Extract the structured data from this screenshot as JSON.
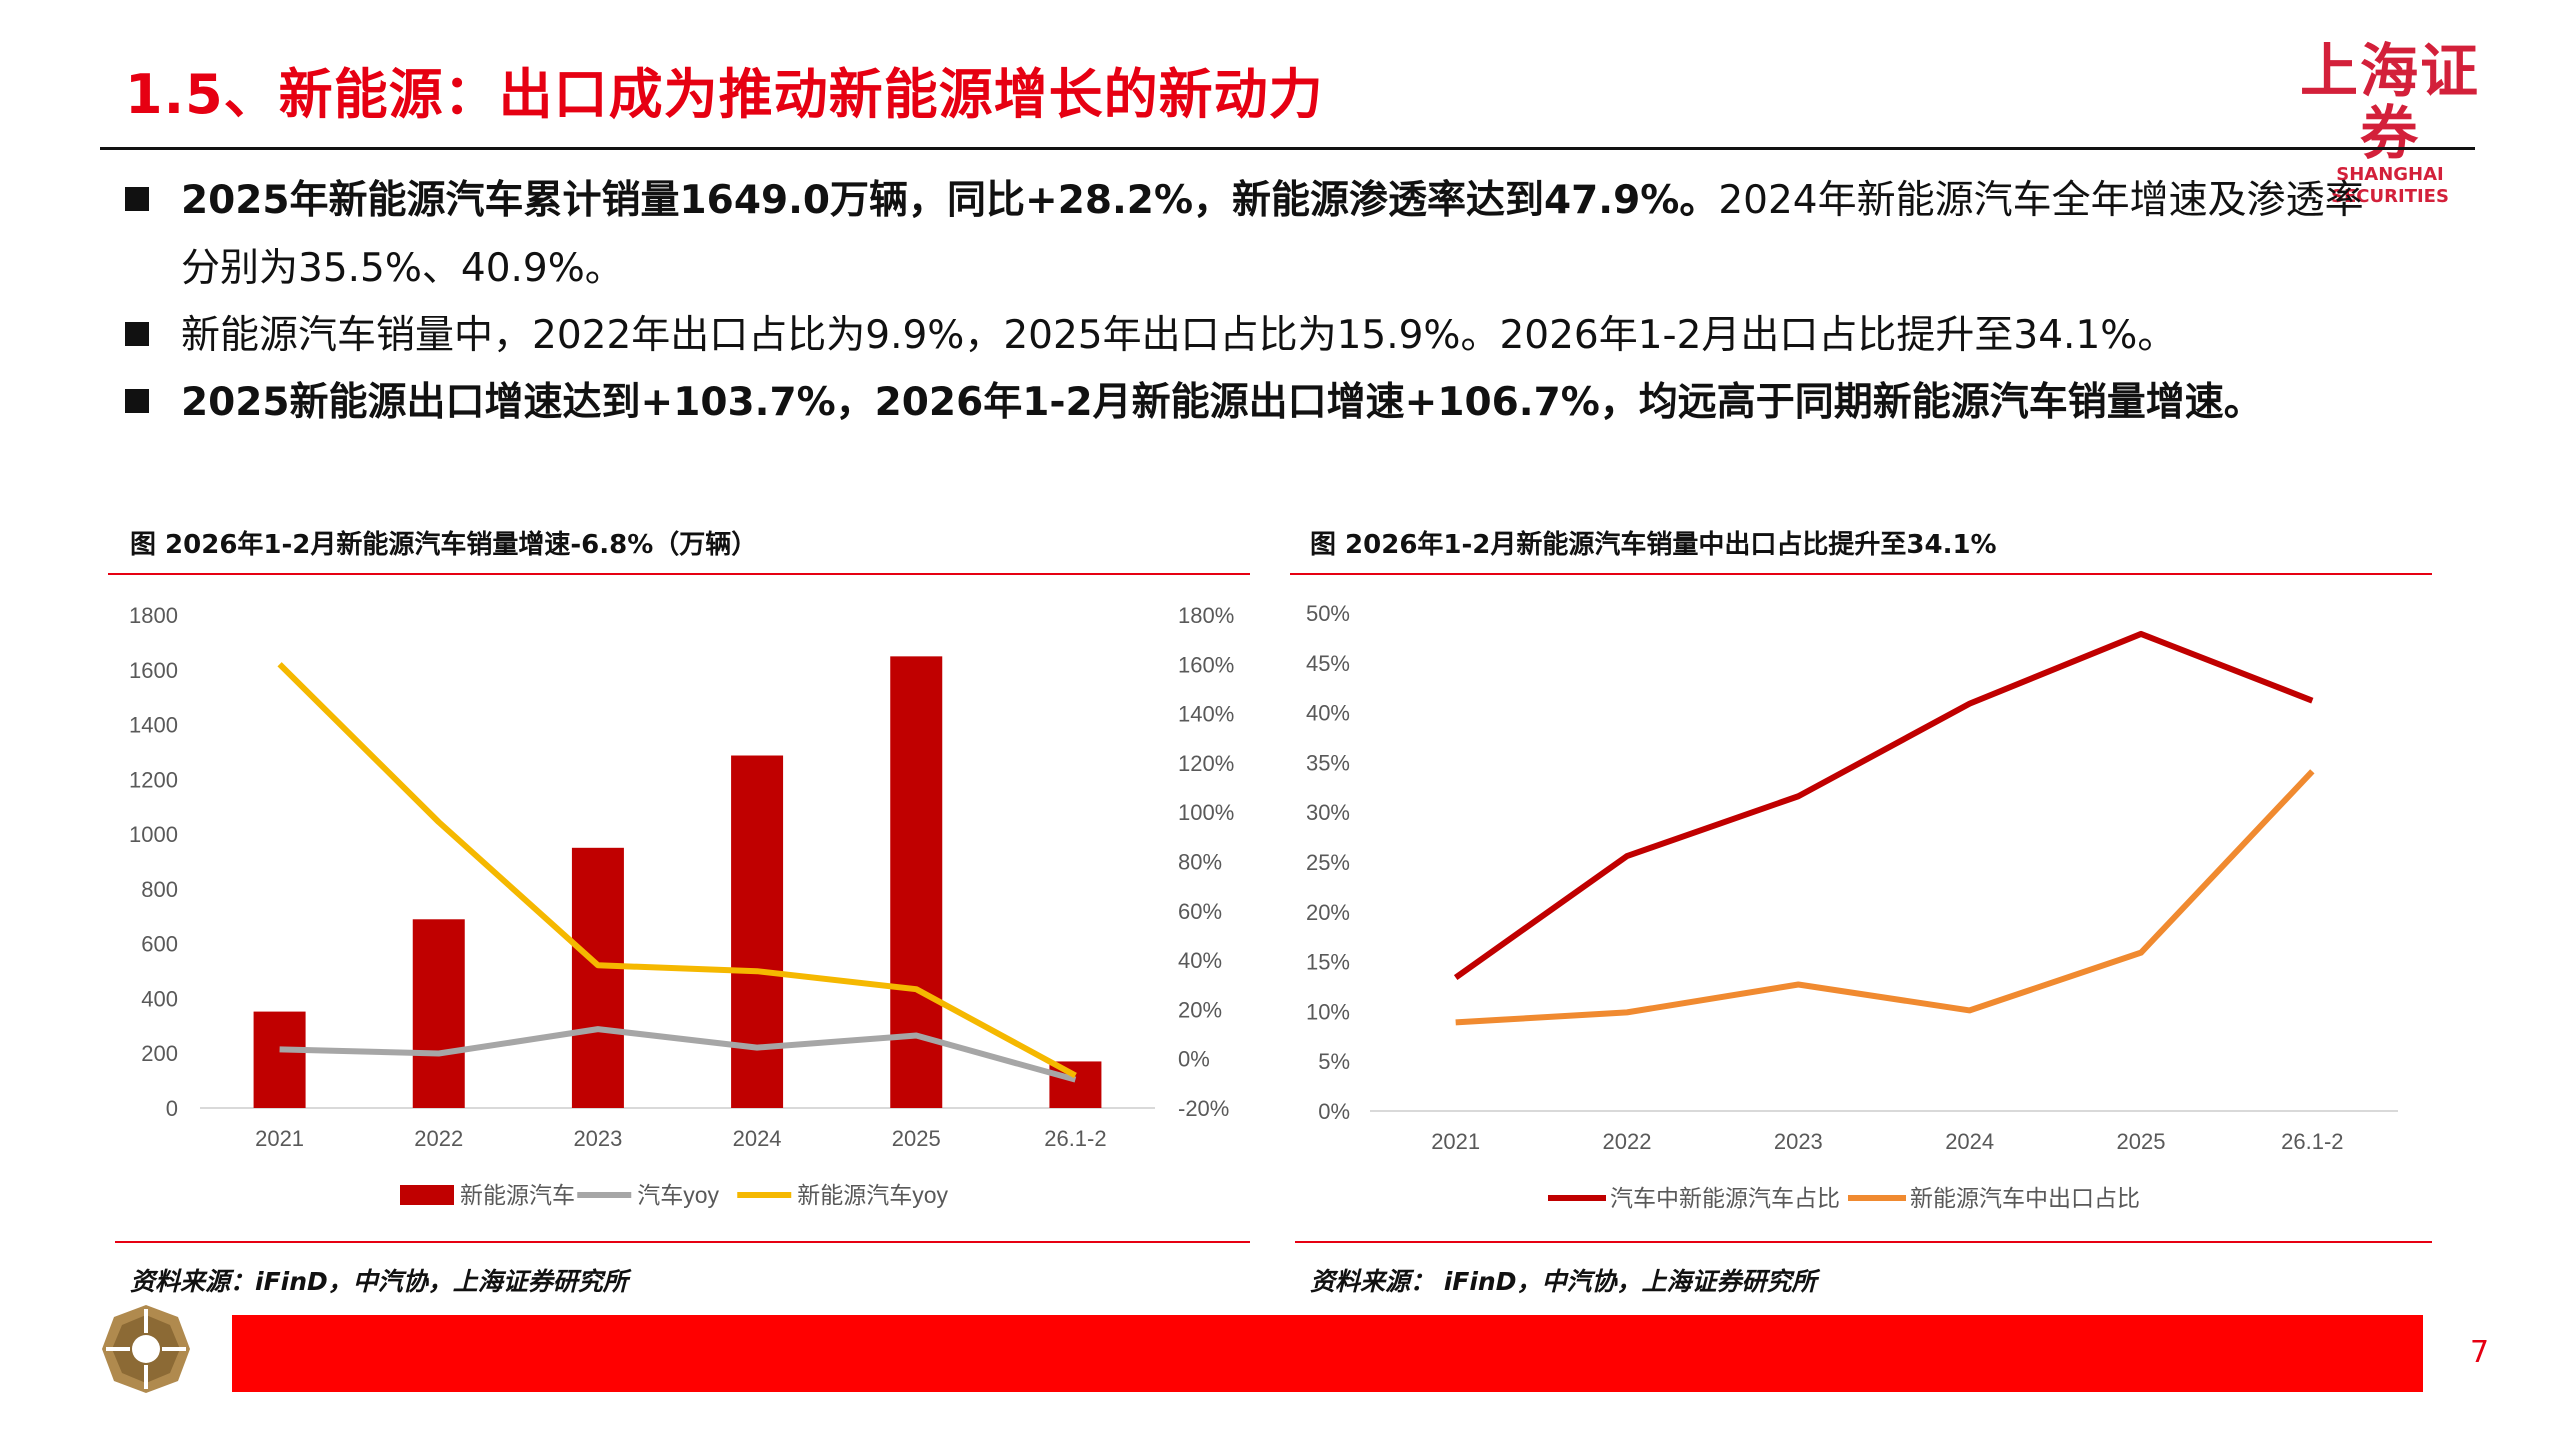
{
  "header": {
    "title": "1.5、新能源：出口成为推动新能源增长的新动力",
    "logo_cn": "上海证券",
    "logo_en": "SHANGHAI SECURITIES"
  },
  "bullets": [
    {
      "bold": "2025年新能源汽车累计销量1649.0万辆，同比+28.2%，新能源渗透率达到47.9%。",
      "normal": "2024年新能源汽车全年增速及渗透率",
      "cont": "分别为35.5%、40.9%。"
    },
    {
      "bold": "",
      "normal": "新能源汽车销量中，2022年出口占比为9.9%，2025年出口占比为15.9%。2026年1-2月出口占比提升至34.1%。"
    },
    {
      "bold": "2025新能源出口增速达到+103.7%，2026年1-2月新能源出口增速+106.7%，均远高于同期新能源汽车销量增速。",
      "normal": ""
    }
  ],
  "left_panel": {
    "title": "图  2026年1-2月新能源汽车销量增速-6.8%（万辆）",
    "source": "资料来源：iFinD，中汽协，上海证券研究所"
  },
  "right_panel": {
    "title": "图  2026年1-2月新能源汽车销量中出口占比提升至34.1%",
    "source": "资料来源：  iFinD，中汽协，上海证券研究所"
  },
  "footer": {
    "page_number": "7"
  },
  "chart_data": [
    {
      "type": "bar",
      "categories": [
        "2021",
        "2022",
        "2023",
        "2024",
        "2025",
        "26.1-2"
      ],
      "ylim": [
        0,
        1800
      ],
      "yticks": [
        "0",
        "200",
        "400",
        "600",
        "800",
        "1000",
        "1200",
        "1400",
        "1600",
        "1800"
      ],
      "y2lim": [
        -20,
        180
      ],
      "y2ticks": [
        "-20%",
        "0%",
        "20%",
        "40%",
        "60%",
        "80%",
        "100%",
        "120%",
        "140%",
        "160%",
        "180%"
      ],
      "series": [
        {
          "name": "新能源汽车",
          "type": "bar",
          "axis": "left",
          "color": "#c00000",
          "values": [
            352,
            689,
            950,
            1287,
            1649,
            170
          ]
        },
        {
          "name": "汽车yoy",
          "type": "line",
          "axis": "right",
          "color": "#a6a6a6",
          "values": [
            3.8,
            2.1,
            12.0,
            4.5,
            9.4,
            -8.5
          ]
        },
        {
          "name": "新能源汽车yoy",
          "type": "line",
          "axis": "right",
          "color": "#f5b800",
          "values": [
            160.0,
            96.0,
            37.9,
            35.5,
            28.2,
            -6.8
          ]
        }
      ],
      "legend": "bottom"
    },
    {
      "type": "line",
      "categories": [
        "2021",
        "2022",
        "2023",
        "2024",
        "2025",
        "26.1-2"
      ],
      "ylim": [
        0,
        50
      ],
      "yticks": [
        "0%",
        "5%",
        "10%",
        "15%",
        "20%",
        "25%",
        "30%",
        "35%",
        "40%",
        "45%",
        "50%"
      ],
      "series": [
        {
          "name": "汽车中新能源汽车占比",
          "color": "#c00000",
          "values": [
            13.4,
            25.6,
            31.6,
            40.9,
            47.9,
            41.2
          ]
        },
        {
          "name": "新能源汽车中出口占比",
          "color": "#f08a30",
          "values": [
            8.9,
            9.9,
            12.7,
            10.1,
            15.9,
            34.1
          ]
        }
      ],
      "legend": "bottom"
    }
  ]
}
